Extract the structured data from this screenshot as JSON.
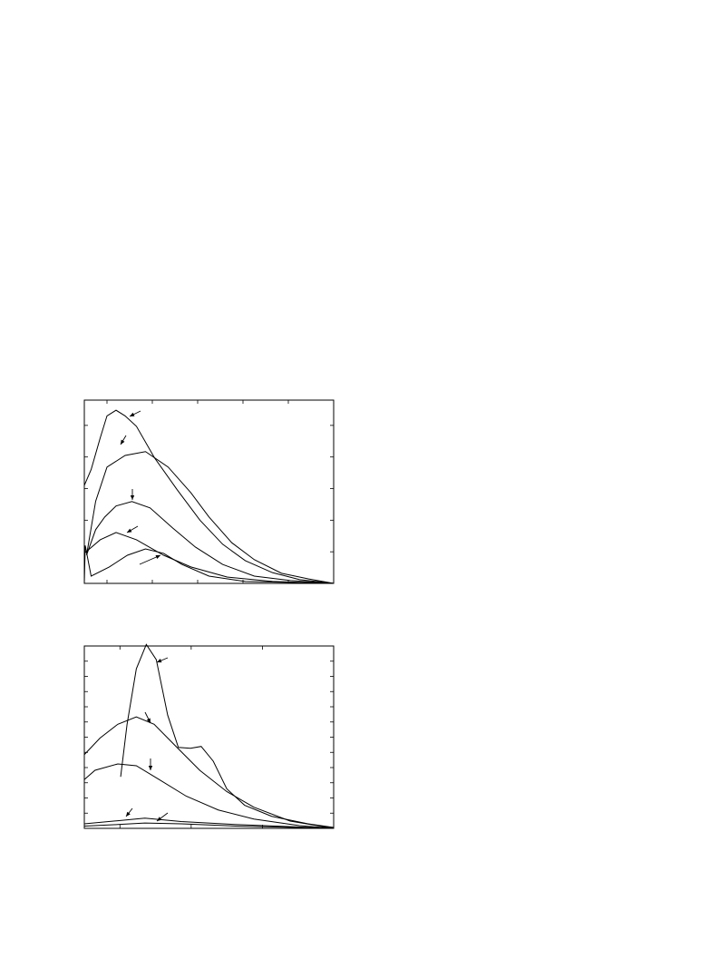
{
  "chart_data": [
    {
      "type": "line",
      "xlim": [
        0,
        11
      ],
      "xticks": [
        1,
        3,
        5,
        7,
        9,
        11
      ],
      "ylim": [
        0,
        5.8
      ],
      "yticks": [
        0,
        1,
        2,
        3,
        4,
        5
      ],
      "series": [
        {
          "color": "#000000",
          "x": [
            0,
            0.3,
            0.7,
            1,
            1.4,
            1.8,
            2.3,
            3.1,
            4.1,
            5.1,
            6.1,
            7.1,
            8.3,
            9.5,
            11
          ],
          "values": [
            3.1,
            3.6,
            4.6,
            5.3,
            5.48,
            5.3,
            4.97,
            3.97,
            2.96,
            2.0,
            1.24,
            0.72,
            0.34,
            0.12,
            0
          ]
        },
        {
          "color": "#000000",
          "x": [
            0.1,
            0.5,
            1,
            1.8,
            2.7,
            3.7,
            4.7,
            5.5,
            6.5,
            7.5,
            8.7,
            9.9,
            11
          ],
          "values": [
            0.9,
            2.6,
            3.68,
            4.05,
            4.17,
            3.68,
            2.87,
            2.1,
            1.29,
            0.75,
            0.32,
            0.14,
            0
          ]
        },
        {
          "color": "#000000",
          "x": [
            0.1,
            0.5,
            0.9,
            1.4,
            2.1,
            2.9,
            3.9,
            4.9,
            6.1,
            7.5,
            9.1,
            11
          ],
          "values": [
            0.9,
            1.7,
            2.1,
            2.45,
            2.59,
            2.39,
            1.75,
            1.15,
            0.6,
            0.23,
            0.09,
            0
          ]
        },
        {
          "color": "#000000",
          "x": [
            0,
            0.7,
            1.4,
            2.3,
            3.5,
            4.7,
            6.3,
            8.3,
            11
          ],
          "values": [
            0.95,
            1.38,
            1.61,
            1.38,
            0.89,
            0.52,
            0.2,
            0.06,
            0
          ]
        },
        {
          "color": "#000000",
          "x": [
            0,
            0.04,
            0.3,
            1.1,
            1.9,
            2.7,
            3.5,
            4.3,
            5.5,
            7.1,
            11
          ],
          "values": [
            0,
            1.2,
            0.23,
            0.52,
            0.89,
            1.09,
            0.95,
            0.6,
            0.23,
            0.06,
            0
          ]
        }
      ]
    },
    {
      "type": "line",
      "xlim": [
        0,
        3.5
      ],
      "xticks": [
        0.5,
        1.5,
        2.5,
        3.5
      ],
      "ylim": [
        0,
        12
      ],
      "yticks": [
        0,
        1,
        2,
        3,
        4,
        5,
        6,
        7,
        8,
        9,
        10,
        11,
        12
      ],
      "series": [
        {
          "color": "#000000",
          "x": [
            0.51,
            0.6,
            0.73,
            0.87,
            1.01,
            1.17,
            1.32,
            1.49,
            1.64,
            1.81,
            2.0,
            2.25,
            2.63,
            3.14,
            3.5
          ],
          "values": [
            3.39,
            6.85,
            10.5,
            12.1,
            11.1,
            7.45,
            5.33,
            5.27,
            5.39,
            4.42,
            2.6,
            1.52,
            0.79,
            0.3,
            0.06
          ]
        },
        {
          "color": "#000000",
          "x": [
            0,
            0.22,
            0.47,
            0.73,
            0.98,
            1.3,
            1.62,
            2.0,
            2.38,
            2.89,
            3.5
          ],
          "values": [
            4.85,
            5.94,
            6.85,
            7.33,
            6.85,
            5.33,
            3.82,
            2.42,
            1.39,
            0.48,
            0
          ]
        },
        {
          "color": "#000000",
          "x": [
            0,
            0.15,
            0.47,
            0.73,
            1.05,
            1.43,
            1.88,
            2.38,
            3.02,
            3.5
          ],
          "values": [
            3.21,
            3.82,
            4.24,
            4.12,
            3.21,
            2.12,
            1.21,
            0.61,
            0.18,
            0
          ]
        },
        {
          "color": "#000000",
          "x": [
            0,
            0.47,
            0.85,
            1.36,
            2.12,
            3.5
          ],
          "values": [
            0.3,
            0.5,
            0.67,
            0.45,
            0.25,
            0
          ]
        },
        {
          "color": "#000000",
          "x": [
            0,
            0.47,
            0.85,
            1.36,
            2.12,
            3.5
          ],
          "values": [
            0.15,
            0.25,
            0.35,
            0.3,
            0.15,
            0
          ]
        }
      ]
    }
  ]
}
